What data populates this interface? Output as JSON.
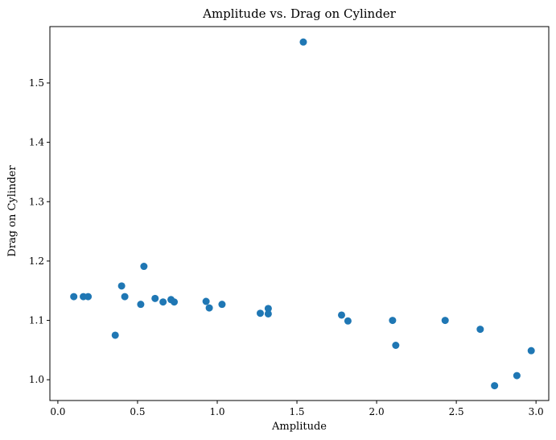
{
  "chart_data": {
    "type": "scatter",
    "title": "Amplitude vs. Drag on Cylinder",
    "xlabel": "Amplitude",
    "ylabel": "Drag on Cylinder",
    "xlim": [
      -0.05,
      3.08
    ],
    "ylim": [
      0.965,
      1.595
    ],
    "xticks": [
      0.0,
      0.5,
      1.0,
      1.5,
      2.0,
      2.5,
      3.0
    ],
    "xtick_labels": [
      "0.0",
      "0.5",
      "1.0",
      "1.5",
      "2.0",
      "2.5",
      "3.0"
    ],
    "yticks": [
      1.0,
      1.1,
      1.2,
      1.3,
      1.4,
      1.5
    ],
    "ytick_labels": [
      "1.0",
      "1.1",
      "1.2",
      "1.3",
      "1.4",
      "1.5"
    ],
    "grid": false,
    "marker_color": "#1f77b4",
    "points": [
      {
        "x": 0.1,
        "y": 1.14
      },
      {
        "x": 0.16,
        "y": 1.14
      },
      {
        "x": 0.19,
        "y": 1.14
      },
      {
        "x": 0.36,
        "y": 1.075
      },
      {
        "x": 0.4,
        "y": 1.158
      },
      {
        "x": 0.42,
        "y": 1.14
      },
      {
        "x": 0.52,
        "y": 1.127
      },
      {
        "x": 0.54,
        "y": 1.191
      },
      {
        "x": 0.61,
        "y": 1.137
      },
      {
        "x": 0.66,
        "y": 1.131
      },
      {
        "x": 0.71,
        "y": 1.135
      },
      {
        "x": 0.73,
        "y": 1.131
      },
      {
        "x": 0.93,
        "y": 1.132
      },
      {
        "x": 0.95,
        "y": 1.121
      },
      {
        "x": 1.03,
        "y": 1.127
      },
      {
        "x": 1.27,
        "y": 1.112
      },
      {
        "x": 1.32,
        "y": 1.12
      },
      {
        "x": 1.32,
        "y": 1.111
      },
      {
        "x": 1.54,
        "y": 1.569
      },
      {
        "x": 1.78,
        "y": 1.109
      },
      {
        "x": 1.82,
        "y": 1.099
      },
      {
        "x": 2.1,
        "y": 1.1
      },
      {
        "x": 2.12,
        "y": 1.058
      },
      {
        "x": 2.43,
        "y": 1.1
      },
      {
        "x": 2.65,
        "y": 1.085
      },
      {
        "x": 2.74,
        "y": 0.99
      },
      {
        "x": 2.88,
        "y": 1.007
      },
      {
        "x": 2.97,
        "y": 1.049
      }
    ]
  }
}
